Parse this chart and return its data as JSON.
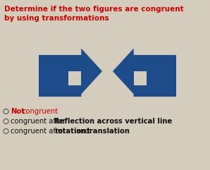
{
  "title_line1": "Determine if the two figures are congruent",
  "title_line2": "by using transformations",
  "title_color": "#cc0000",
  "title_fontsize": 7.5,
  "bg_color": "#d4ccbc",
  "shape_color": "#1e4b8a",
  "options_fontsize": 7.2,
  "radio_color": "#555555",
  "opt1_normal": "Not",
  "opt1_red": "congruent",
  "opt2_normal": "congruent after ",
  "opt2_bold": "Reflection across vertical line",
  "opt3_normal": "congruent after ",
  "opt3_bold1": "rotation",
  "opt3_and": " and ",
  "opt3_bold2": "translation"
}
